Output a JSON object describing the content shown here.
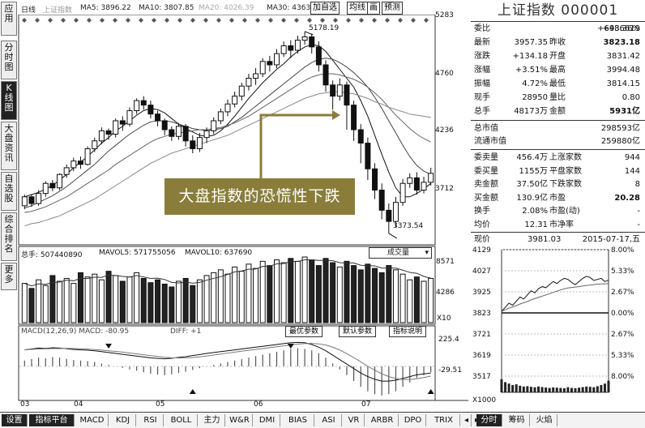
{
  "sidebar": {
    "tabs": [
      {
        "label": "应用",
        "active": false
      },
      {
        "label": "分时图",
        "active": false
      },
      {
        "label": "K线图",
        "active": true
      },
      {
        "label": "大盘资讯",
        "active": false
      },
      {
        "label": "自选股",
        "active": false
      },
      {
        "label": "综合排名",
        "active": false
      },
      {
        "label": "更多",
        "active": false
      }
    ]
  },
  "header": {
    "period": "日线",
    "index_name": "上证指数",
    "ma5": "MA5: 3896.22",
    "ma10": "MA10: 3807.85",
    "ma20": "MA20: 4026.39",
    "ma30": "MA30: 4363",
    "buttons": [
      "加自选",
      "均线",
      "画",
      "预测"
    ]
  },
  "kline": {
    "price_axis": [
      "5283",
      "4760",
      "4236",
      "3712"
    ],
    "annotation_high": "5178.19",
    "annotation_low": "3373.54",
    "callout": "大盘指数的恐慌性下跌",
    "candles": [
      [
        3620,
        3700,
        3590,
        3720
      ],
      [
        3700,
        3640,
        3610,
        3720
      ],
      [
        3640,
        3730,
        3620,
        3760
      ],
      [
        3730,
        3820,
        3700,
        3840
      ],
      [
        3820,
        3780,
        3750,
        3850
      ],
      [
        3780,
        3900,
        3760,
        3910
      ],
      [
        3900,
        3960,
        3870,
        3990
      ],
      [
        3960,
        4020,
        3930,
        4050
      ],
      [
        4020,
        3990,
        3950,
        4060
      ],
      [
        3990,
        4130,
        3980,
        4150
      ],
      [
        4130,
        4200,
        4100,
        4230
      ],
      [
        4200,
        4290,
        4170,
        4320
      ],
      [
        4290,
        4260,
        4210,
        4310
      ],
      [
        4260,
        4380,
        4230,
        4400
      ],
      [
        4380,
        4350,
        4290,
        4420
      ],
      [
        4350,
        4470,
        4330,
        4500
      ],
      [
        4470,
        4560,
        4440,
        4580
      ],
      [
        4560,
        4520,
        4480,
        4600
      ],
      [
        4520,
        4440,
        4400,
        4560
      ],
      [
        4440,
        4380,
        4330,
        4470
      ],
      [
        4380,
        4300,
        4250,
        4400
      ],
      [
        4300,
        4240,
        4200,
        4330
      ],
      [
        4240,
        4330,
        4210,
        4360
      ],
      [
        4330,
        4200,
        4150,
        4350
      ],
      [
        4200,
        4130,
        4090,
        4250
      ],
      [
        4130,
        4230,
        4100,
        4270
      ],
      [
        4230,
        4290,
        4180,
        4320
      ],
      [
        4290,
        4380,
        4260,
        4410
      ],
      [
        4380,
        4460,
        4350,
        4490
      ],
      [
        4460,
        4530,
        4420,
        4570
      ],
      [
        4530,
        4600,
        4500,
        4640
      ],
      [
        4600,
        4690,
        4560,
        4720
      ],
      [
        4690,
        4760,
        4650,
        4800
      ],
      [
        4760,
        4800,
        4700,
        4850
      ],
      [
        4800,
        4910,
        4770,
        4940
      ],
      [
        4910,
        4880,
        4820,
        4960
      ],
      [
        4880,
        4980,
        4850,
        5020
      ],
      [
        4980,
        5050,
        4950,
        5090
      ],
      [
        5050,
        5010,
        4940,
        5100
      ],
      [
        5010,
        5100,
        4980,
        5140
      ],
      [
        5100,
        5130,
        5060,
        5178
      ],
      [
        5130,
        5040,
        4980,
        5160
      ],
      [
        5040,
        4880,
        4820,
        5090
      ],
      [
        4880,
        4700,
        4640,
        4920
      ],
      [
        4700,
        4600,
        4480,
        4740
      ],
      [
        4600,
        4700,
        4560,
        4760
      ],
      [
        4700,
        4520,
        4300,
        4730
      ],
      [
        4520,
        4300,
        4200,
        4560
      ],
      [
        4300,
        4180,
        4000,
        4350
      ],
      [
        4180,
        3950,
        3850,
        4230
      ],
      [
        3950,
        3760,
        3680,
        4000
      ],
      [
        3760,
        3580,
        3500,
        3820
      ],
      [
        3580,
        3480,
        3373,
        3640
      ],
      [
        3480,
        3650,
        3430,
        3700
      ],
      [
        3650,
        3820,
        3620,
        3860
      ],
      [
        3820,
        3870,
        3780,
        3910
      ],
      [
        3870,
        3760,
        3720,
        3920
      ],
      [
        3760,
        3830,
        3730,
        3880
      ],
      [
        3830,
        3910,
        3800,
        3960
      ]
    ],
    "ma_series": [
      [
        3700,
        3720,
        3740,
        3770,
        3800,
        3850,
        3900,
        3960,
        4010,
        4060,
        4120,
        4180,
        4230,
        4290,
        4330,
        4380,
        4430,
        4470,
        4490,
        4480,
        4450,
        4400,
        4350,
        4310,
        4280,
        4250,
        4240,
        4250,
        4290,
        4350,
        4420,
        4500,
        4580,
        4650,
        4720,
        4780,
        4840,
        4890,
        4950,
        5000,
        5040,
        5060,
        5050,
        5000,
        4920,
        4840,
        4760,
        4680,
        4560,
        4420,
        4250,
        4080,
        3920,
        3780,
        3700,
        3700,
        3730,
        3770,
        3820
      ],
      [
        3600,
        3620,
        3650,
        3680,
        3710,
        3750,
        3790,
        3840,
        3890,
        3940,
        3990,
        4050,
        4110,
        4160,
        4210,
        4260,
        4300,
        4340,
        4370,
        4380,
        4380,
        4370,
        4350,
        4330,
        4310,
        4300,
        4290,
        4300,
        4310,
        4330,
        4370,
        4410,
        4460,
        4510,
        4560,
        4610,
        4660,
        4710,
        4760,
        4810,
        4860,
        4900,
        4930,
        4940,
        4930,
        4900,
        4860,
        4810,
        4750,
        4680,
        4590,
        4490,
        4380,
        4270,
        4160,
        4060,
        3980,
        3930,
        3900
      ],
      [
        3560,
        3570,
        3590,
        3610,
        3640,
        3670,
        3700,
        3740,
        3780,
        3820,
        3860,
        3900,
        3940,
        3990,
        4030,
        4070,
        4110,
        4150,
        4190,
        4220,
        4240,
        4260,
        4270,
        4280,
        4290,
        4300,
        4300,
        4310,
        4320,
        4340,
        4360,
        4390,
        4420,
        4460,
        4500,
        4540,
        4580,
        4620,
        4660,
        4700,
        4740,
        4770,
        4790,
        4800,
        4800,
        4790,
        4770,
        4750,
        4720,
        4680,
        4630,
        4570,
        4500,
        4430,
        4370,
        4310,
        4260,
        4220,
        4190
      ],
      [
        3440,
        3460,
        3470,
        3490,
        3510,
        3530,
        3560,
        3590,
        3620,
        3650,
        3680,
        3720,
        3760,
        3800,
        3840,
        3880,
        3920,
        3960,
        4000,
        4030,
        4060,
        4090,
        4110,
        4130,
        4150,
        4170,
        4190,
        4210,
        4230,
        4250,
        4280,
        4310,
        4340,
        4370,
        4400,
        4430,
        4460,
        4490,
        4520,
        4550,
        4580,
        4600,
        4620,
        4630,
        4640,
        4640,
        4630,
        4620,
        4600,
        4580,
        4550,
        4530,
        4500,
        4480,
        4460,
        4440,
        4430,
        4420,
        4410
      ]
    ]
  },
  "volume": {
    "total_label": "总手: 507440890",
    "mavol5": "MAVOL5: 571755056",
    "mavol10": "MAVOL10: 637690",
    "dropdown": "成交量",
    "axis": [
      "8571",
      "4286"
    ],
    "unit": "X10",
    "values": [
      0.55,
      0.48,
      0.6,
      0.52,
      0.66,
      0.58,
      0.62,
      0.55,
      0.7,
      0.64,
      0.68,
      0.6,
      0.72,
      0.66,
      0.58,
      0.64,
      0.7,
      0.62,
      0.56,
      0.6,
      0.54,
      0.5,
      0.58,
      0.62,
      0.52,
      0.6,
      0.66,
      0.7,
      0.74,
      0.68,
      0.78,
      0.72,
      0.82,
      0.76,
      0.86,
      0.8,
      0.88,
      0.84,
      0.9,
      0.86,
      0.92,
      0.88,
      0.8,
      0.9,
      0.84,
      0.78,
      0.86,
      0.8,
      0.74,
      0.82,
      0.76,
      0.7,
      0.8,
      0.74,
      0.68,
      0.6,
      0.64,
      0.58,
      0.62
    ]
  },
  "macd": {
    "label": "MACD(12,26,9) MACD: -80.95",
    "diff": "DIFF: +1",
    "buttons": [
      "最优参数",
      "默认参数",
      "指标说明"
    ],
    "axis": [
      "225.4",
      "-29.51"
    ],
    "hist": [
      0.2,
      0.25,
      0.3,
      0.28,
      0.32,
      0.3,
      0.26,
      0.22,
      0.2,
      0.18,
      0.15,
      0.1,
      0.05,
      0.0,
      -0.05,
      -0.1,
      -0.15,
      -0.2,
      -0.25,
      -0.28,
      -0.3,
      -0.27,
      -0.22,
      -0.18,
      -0.12,
      -0.06,
      0.0,
      0.05,
      0.1,
      0.15,
      0.2,
      0.25,
      0.3,
      0.35,
      0.4,
      0.45,
      0.5,
      0.55,
      0.6,
      0.62,
      0.6,
      0.55,
      0.45,
      0.3,
      0.1,
      -0.1,
      -0.3,
      -0.5,
      -0.7,
      -0.85,
      -0.95,
      -1.0,
      -0.95,
      -0.85,
      -0.7,
      -0.55,
      -0.4,
      -0.3,
      -0.2
    ]
  },
  "xaxis": [
    "03",
    "04",
    "05",
    "06",
    "07"
  ],
  "quote": {
    "title": "上证指数 000001",
    "rows": [
      {
        "l": "委比",
        "v1": "+43.36%",
        "l2": "",
        "v2": "+6986619"
      },
      {
        "l": "最新",
        "v1": "3957.35",
        "l2": "昨收",
        "v2": "3823.18"
      },
      {
        "l": "涨跌",
        "v1": "+134.18",
        "l2": "开盘",
        "v2": "3831.42"
      },
      {
        "l": "涨幅",
        "v1": "+3.51%",
        "l2": "最高",
        "v2": "3994.48"
      },
      {
        "l": "振幅",
        "v1": "4.72%",
        "l2": "最低",
        "v2": "3814.15"
      },
      {
        "l": "现手",
        "v1": "28950",
        "l2": "量比",
        "v2": "0.80"
      },
      {
        "l": "总手",
        "v1": "48173万",
        "l2": "金额",
        "v2": "5931亿"
      }
    ],
    "rows2": [
      {
        "l": "总市值",
        "v": "298593亿"
      },
      {
        "l": "流通市值",
        "v": "259880亿"
      }
    ],
    "rows3": [
      {
        "l": "委卖量",
        "v1": "456.4万",
        "l2": "上涨家数",
        "v2": "944"
      },
      {
        "l": "委买量",
        "v1": "1155万",
        "l2": "平盘家数",
        "v2": "144"
      },
      {
        "l": "卖金额",
        "v1": "37.50亿",
        "l2": "下跌家数",
        "v2": "8"
      },
      {
        "l": "买金额",
        "v1": "130.9亿",
        "l2": "市盈",
        "v2": "20.28"
      },
      {
        "l": "换手",
        "v1": "2.08%",
        "l2": "市盈(动)",
        "v2": "-"
      },
      {
        "l": "均价",
        "v1": "12.31",
        "l2": "市净率",
        "v2": "-"
      }
    ],
    "now_label": "现价",
    "now_value": "3981.03",
    "date": "2015-07-17,五"
  },
  "intraday": {
    "left_axis": [
      "4129",
      "4027",
      "3925",
      "3823",
      "3721",
      "3619",
      "3517"
    ],
    "right_axis": [
      "8.00%",
      "5.33%",
      "2.67%",
      "0.00%",
      "2.67%",
      "5.33%",
      "8.00%"
    ],
    "unit": "X1000",
    "price": [
      3830,
      3850,
      3870,
      3860,
      3880,
      3900,
      3890,
      3910,
      3930,
      3920,
      3940,
      3950,
      3945,
      3960,
      3975,
      3965,
      3980,
      3990,
      3985,
      3970,
      3960,
      3975,
      3990,
      4000,
      3995,
      3980,
      3985,
      3990,
      3975,
      3981
    ],
    "avg": [
      3830,
      3838,
      3846,
      3852,
      3858,
      3866,
      3872,
      3878,
      3886,
      3892,
      3898,
      3904,
      3910,
      3916,
      3922,
      3928,
      3934,
      3940,
      3944,
      3946,
      3948,
      3950,
      3953,
      3956,
      3958,
      3960,
      3962,
      3963,
      3964,
      3965
    ],
    "vol": [
      0.9,
      0.7,
      0.6,
      0.5,
      0.55,
      0.45,
      0.4,
      0.42,
      0.38,
      0.35,
      0.4,
      0.36,
      0.33,
      0.3,
      0.34,
      0.32,
      0.3,
      0.28,
      0.35,
      0.3,
      0.28,
      0.32,
      0.36,
      0.4,
      0.38,
      0.35,
      0.42,
      0.5,
      0.6,
      0.8
    ]
  },
  "bottom_tabs": [
    {
      "label": "设置",
      "dark": true
    },
    {
      "label": "指标平台",
      "dark": true
    },
    {
      "label": "MACD",
      "dark": false
    },
    {
      "label": "KDJ",
      "dark": false
    },
    {
      "label": "RSI",
      "dark": false
    },
    {
      "label": "BOLL",
      "dark": false
    },
    {
      "label": "主力",
      "dark": false
    },
    {
      "label": "W&R",
      "dark": false
    },
    {
      "label": "DMI",
      "dark": false
    },
    {
      "label": "BIAS",
      "dark": false
    },
    {
      "label": "ASI",
      "dark": false
    },
    {
      "label": "VR",
      "dark": false
    },
    {
      "label": "ARBR",
      "dark": false
    },
    {
      "label": "DPO",
      "dark": false
    },
    {
      "label": "TRIX",
      "dark": false
    },
    {
      "label": "分时",
      "dark": true
    },
    {
      "label": "筹码",
      "dark": false
    },
    {
      "label": "火焰",
      "dark": false
    }
  ]
}
